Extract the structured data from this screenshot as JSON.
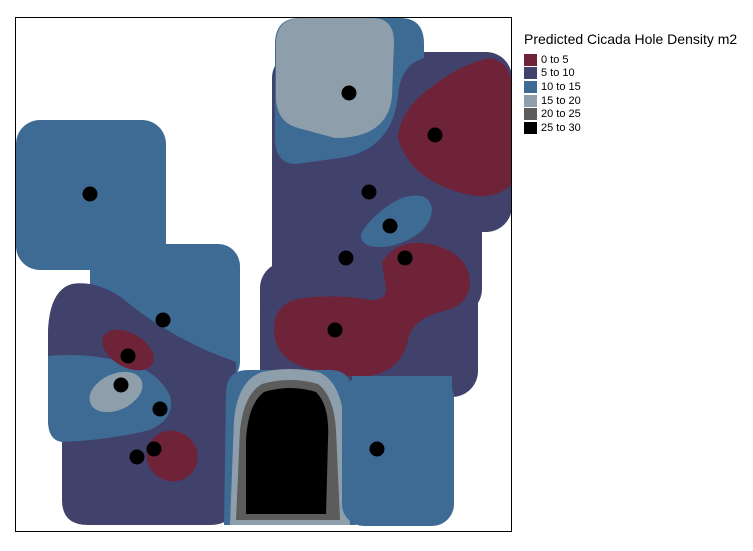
{
  "legend": {
    "title": "Predicted Cicada Hole Density m2",
    "classes": [
      {
        "label": "0 to 5",
        "color": "#6e2339"
      },
      {
        "label": "5 to 10",
        "color": "#41426b"
      },
      {
        "label": "10 to 15",
        "color": "#3d6b94"
      },
      {
        "label": "15 to 20",
        "color": "#8e9fab"
      },
      {
        "label": "20 to 25",
        "color": "#5c5c5c"
      },
      {
        "label": "25 to 30",
        "color": "#000000"
      }
    ]
  }
}
